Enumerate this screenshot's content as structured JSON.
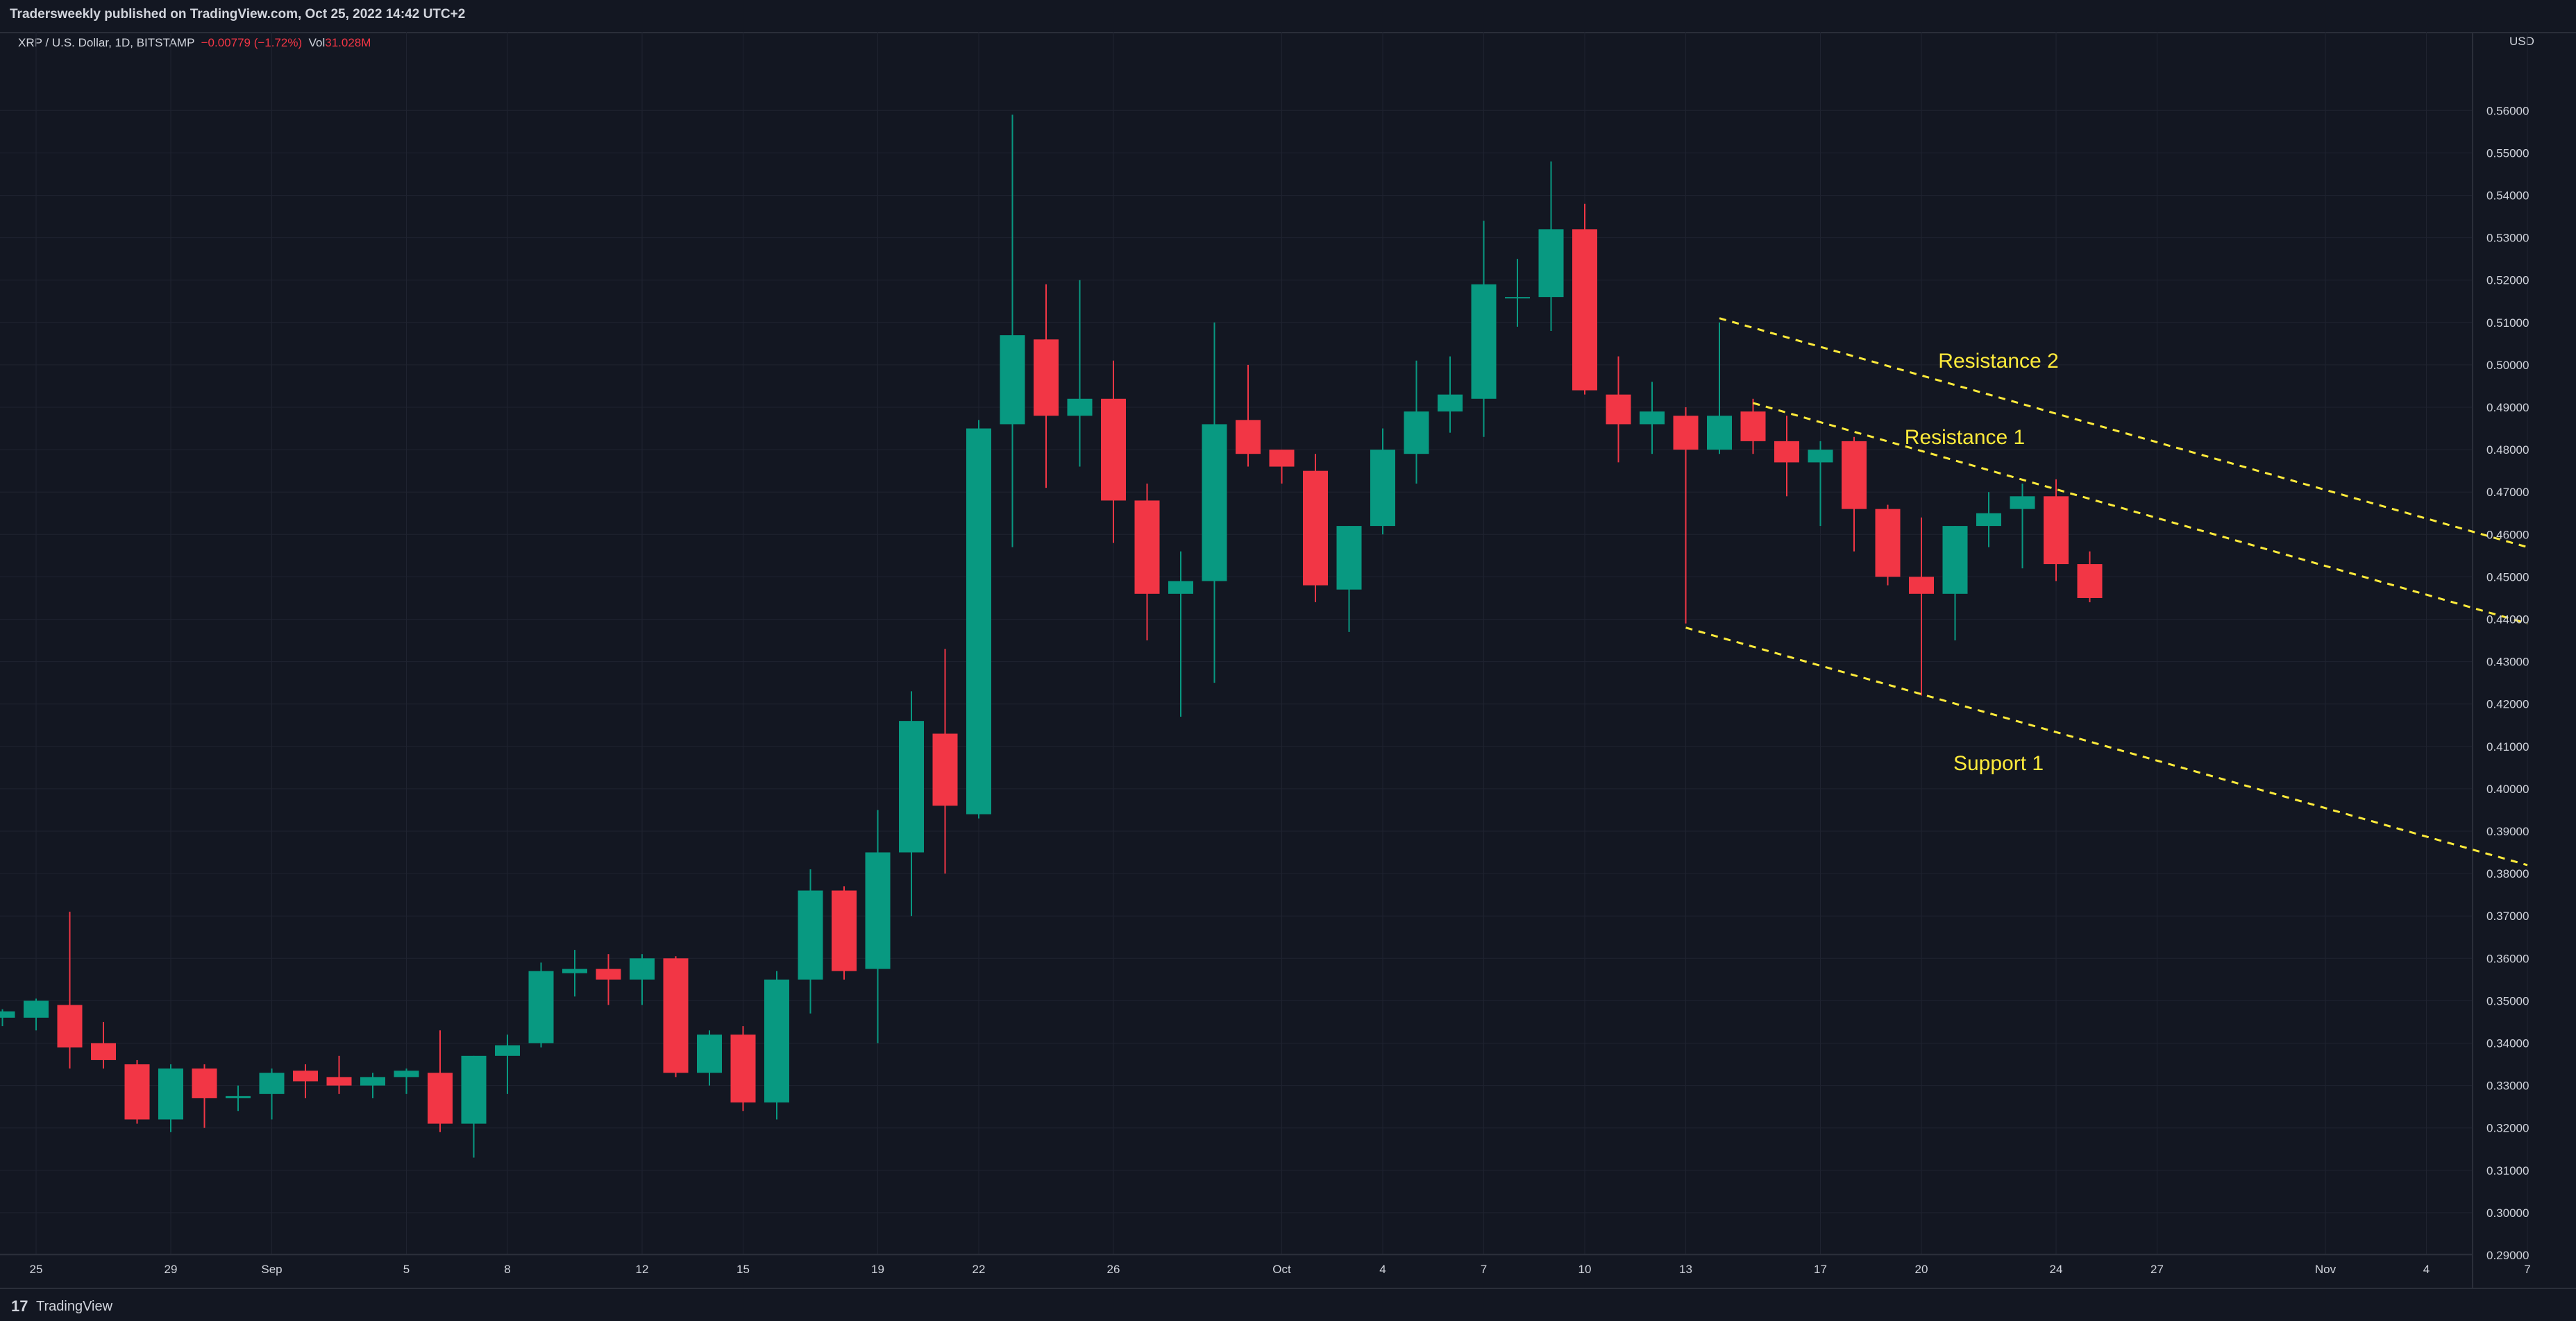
{
  "header": {
    "publisher_line": "Tradersweekly published on TradingView.com, Oct 25, 2022 14:42 UTC+2"
  },
  "legend": {
    "symbol": "XRP / U.S. Dollar, 1D, BITSTAMP",
    "change": "−0.00779 (−1.72%)",
    "vol_label": "Vol",
    "vol_value": "31.028M"
  },
  "footer": {
    "brand": "TradingView",
    "logo_text": "17"
  },
  "colors": {
    "up": "#089981",
    "down": "#f23645",
    "background": "#131722",
    "grid": "#1f2330",
    "text": "#d1d4dc",
    "annotation": "#ffeb3b"
  },
  "chart_data": {
    "type": "candlestick",
    "currency": "USD",
    "ylim": [
      0.285,
      0.565
    ],
    "price_ticks": [
      "0.56000",
      "0.55000",
      "0.54000",
      "0.53000",
      "0.52000",
      "0.51000",
      "0.50000",
      "0.49000",
      "0.48000",
      "0.47000",
      "0.46000",
      "0.45000",
      "0.44000",
      "0.43000",
      "0.42000",
      "0.41000",
      "0.40000",
      "0.39000",
      "0.38000",
      "0.37000",
      "0.36000",
      "0.35000",
      "0.34000",
      "0.33000",
      "0.32000",
      "0.31000",
      "0.30000",
      "0.29000"
    ],
    "date_ticks": [
      {
        "date": "2022-08-25",
        "label": "25"
      },
      {
        "date": "2022-08-29",
        "label": "29"
      },
      {
        "date": "2022-09-01",
        "label": "Sep"
      },
      {
        "date": "2022-09-05",
        "label": "5"
      },
      {
        "date": "2022-09-08",
        "label": "8"
      },
      {
        "date": "2022-09-12",
        "label": "12"
      },
      {
        "date": "2022-09-15",
        "label": "15"
      },
      {
        "date": "2022-09-19",
        "label": "19"
      },
      {
        "date": "2022-09-22",
        "label": "22"
      },
      {
        "date": "2022-09-26",
        "label": "26"
      },
      {
        "date": "2022-10-01",
        "label": "Oct"
      },
      {
        "date": "2022-10-04",
        "label": "4"
      },
      {
        "date": "2022-10-07",
        "label": "7"
      },
      {
        "date": "2022-10-10",
        "label": "10"
      },
      {
        "date": "2022-10-13",
        "label": "13"
      },
      {
        "date": "2022-10-17",
        "label": "17"
      },
      {
        "date": "2022-10-20",
        "label": "20"
      },
      {
        "date": "2022-10-24",
        "label": "24"
      },
      {
        "date": "2022-10-27",
        "label": "27"
      },
      {
        "date": "2022-11-01",
        "label": "Nov"
      },
      {
        "date": "2022-11-04",
        "label": "4"
      },
      {
        "date": "2022-11-07",
        "label": "7"
      }
    ],
    "candles": [
      {
        "date": "2022-08-24",
        "o": 0.346,
        "h": 0.348,
        "l": 0.344,
        "c": 0.3475
      },
      {
        "date": "2022-08-25",
        "o": 0.346,
        "h": 0.3505,
        "l": 0.343,
        "c": 0.35
      },
      {
        "date": "2022-08-26",
        "o": 0.349,
        "h": 0.371,
        "l": 0.334,
        "c": 0.339
      },
      {
        "date": "2022-08-27",
        "o": 0.34,
        "h": 0.345,
        "l": 0.334,
        "c": 0.336
      },
      {
        "date": "2022-08-28",
        "o": 0.335,
        "h": 0.336,
        "l": 0.321,
        "c": 0.322
      },
      {
        "date": "2022-08-29",
        "o": 0.322,
        "h": 0.335,
        "l": 0.319,
        "c": 0.334
      },
      {
        "date": "2022-08-30",
        "o": 0.334,
        "h": 0.335,
        "l": 0.32,
        "c": 0.327
      },
      {
        "date": "2022-08-31",
        "o": 0.327,
        "h": 0.33,
        "l": 0.324,
        "c": 0.3275
      },
      {
        "date": "2022-09-01",
        "o": 0.328,
        "h": 0.334,
        "l": 0.322,
        "c": 0.333
      },
      {
        "date": "2022-09-02",
        "o": 0.3335,
        "h": 0.335,
        "l": 0.327,
        "c": 0.331
      },
      {
        "date": "2022-09-03",
        "o": 0.332,
        "h": 0.337,
        "l": 0.328,
        "c": 0.33
      },
      {
        "date": "2022-09-04",
        "o": 0.33,
        "h": 0.333,
        "l": 0.327,
        "c": 0.332
      },
      {
        "date": "2022-09-05",
        "o": 0.332,
        "h": 0.334,
        "l": 0.328,
        "c": 0.3335
      },
      {
        "date": "2022-09-06",
        "o": 0.333,
        "h": 0.343,
        "l": 0.319,
        "c": 0.321
      },
      {
        "date": "2022-09-07",
        "o": 0.321,
        "h": 0.337,
        "l": 0.313,
        "c": 0.337
      },
      {
        "date": "2022-09-08",
        "o": 0.337,
        "h": 0.342,
        "l": 0.328,
        "c": 0.3395
      },
      {
        "date": "2022-09-09",
        "o": 0.34,
        "h": 0.359,
        "l": 0.339,
        "c": 0.357
      },
      {
        "date": "2022-09-10",
        "o": 0.3565,
        "h": 0.362,
        "l": 0.351,
        "c": 0.3575
      },
      {
        "date": "2022-09-11",
        "o": 0.3575,
        "h": 0.361,
        "l": 0.349,
        "c": 0.355
      },
      {
        "date": "2022-09-12",
        "o": 0.355,
        "h": 0.361,
        "l": 0.349,
        "c": 0.36
      },
      {
        "date": "2022-09-13",
        "o": 0.36,
        "h": 0.3605,
        "l": 0.332,
        "c": 0.333
      },
      {
        "date": "2022-09-14",
        "o": 0.333,
        "h": 0.343,
        "l": 0.33,
        "c": 0.342
      },
      {
        "date": "2022-09-15",
        "o": 0.342,
        "h": 0.344,
        "l": 0.324,
        "c": 0.326
      },
      {
        "date": "2022-09-16",
        "o": 0.326,
        "h": 0.357,
        "l": 0.322,
        "c": 0.355
      },
      {
        "date": "2022-09-17",
        "o": 0.355,
        "h": 0.381,
        "l": 0.347,
        "c": 0.376
      },
      {
        "date": "2022-09-18",
        "o": 0.376,
        "h": 0.377,
        "l": 0.355,
        "c": 0.357
      },
      {
        "date": "2022-09-19",
        "o": 0.3575,
        "h": 0.395,
        "l": 0.34,
        "c": 0.385
      },
      {
        "date": "2022-09-20",
        "o": 0.385,
        "h": 0.423,
        "l": 0.37,
        "c": 0.416
      },
      {
        "date": "2022-09-21",
        "o": 0.413,
        "h": 0.433,
        "l": 0.38,
        "c": 0.396
      },
      {
        "date": "2022-09-22",
        "o": 0.394,
        "h": 0.487,
        "l": 0.393,
        "c": 0.485
      },
      {
        "date": "2022-09-23",
        "o": 0.486,
        "h": 0.559,
        "l": 0.457,
        "c": 0.507
      },
      {
        "date": "2022-09-24",
        "o": 0.506,
        "h": 0.519,
        "l": 0.471,
        "c": 0.488
      },
      {
        "date": "2022-09-25",
        "o": 0.488,
        "h": 0.52,
        "l": 0.476,
        "c": 0.492
      },
      {
        "date": "2022-09-26",
        "o": 0.492,
        "h": 0.501,
        "l": 0.458,
        "c": 0.468
      },
      {
        "date": "2022-09-27",
        "o": 0.468,
        "h": 0.472,
        "l": 0.435,
        "c": 0.446
      },
      {
        "date": "2022-09-28",
        "o": 0.446,
        "h": 0.456,
        "l": 0.417,
        "c": 0.449
      },
      {
        "date": "2022-09-29",
        "o": 0.449,
        "h": 0.51,
        "l": 0.425,
        "c": 0.486
      },
      {
        "date": "2022-09-30",
        "o": 0.487,
        "h": 0.5,
        "l": 0.476,
        "c": 0.479
      },
      {
        "date": "2022-10-01",
        "o": 0.48,
        "h": 0.48,
        "l": 0.472,
        "c": 0.476
      },
      {
        "date": "2022-10-02",
        "o": 0.475,
        "h": 0.479,
        "l": 0.444,
        "c": 0.448
      },
      {
        "date": "2022-10-03",
        "o": 0.447,
        "h": 0.462,
        "l": 0.437,
        "c": 0.462
      },
      {
        "date": "2022-10-04",
        "o": 0.462,
        "h": 0.485,
        "l": 0.46,
        "c": 0.48
      },
      {
        "date": "2022-10-05",
        "o": 0.479,
        "h": 0.501,
        "l": 0.472,
        "c": 0.489
      },
      {
        "date": "2022-10-06",
        "o": 0.489,
        "h": 0.502,
        "l": 0.484,
        "c": 0.493
      },
      {
        "date": "2022-10-07",
        "o": 0.492,
        "h": 0.534,
        "l": 0.483,
        "c": 0.519
      },
      {
        "date": "2022-10-08",
        "o": 0.516,
        "h": 0.525,
        "l": 0.509,
        "c": 0.516
      },
      {
        "date": "2022-10-09",
        "o": 0.516,
        "h": 0.548,
        "l": 0.508,
        "c": 0.532
      },
      {
        "date": "2022-10-10",
        "o": 0.532,
        "h": 0.538,
        "l": 0.493,
        "c": 0.494
      },
      {
        "date": "2022-10-11",
        "o": 0.493,
        "h": 0.502,
        "l": 0.477,
        "c": 0.486
      },
      {
        "date": "2022-10-12",
        "o": 0.486,
        "h": 0.496,
        "l": 0.479,
        "c": 0.489
      },
      {
        "date": "2022-10-13",
        "o": 0.488,
        "h": 0.49,
        "l": 0.439,
        "c": 0.48
      },
      {
        "date": "2022-10-14",
        "o": 0.48,
        "h": 0.51,
        "l": 0.479,
        "c": 0.488
      },
      {
        "date": "2022-10-15",
        "o": 0.489,
        "h": 0.492,
        "l": 0.479,
        "c": 0.482
      },
      {
        "date": "2022-10-16",
        "o": 0.482,
        "h": 0.488,
        "l": 0.469,
        "c": 0.477
      },
      {
        "date": "2022-10-17",
        "o": 0.477,
        "h": 0.482,
        "l": 0.462,
        "c": 0.48
      },
      {
        "date": "2022-10-18",
        "o": 0.482,
        "h": 0.483,
        "l": 0.456,
        "c": 0.466
      },
      {
        "date": "2022-10-19",
        "o": 0.466,
        "h": 0.467,
        "l": 0.448,
        "c": 0.45
      },
      {
        "date": "2022-10-20",
        "o": 0.45,
        "h": 0.464,
        "l": 0.422,
        "c": 0.446
      },
      {
        "date": "2022-10-21",
        "o": 0.446,
        "h": 0.462,
        "l": 0.435,
        "c": 0.462
      },
      {
        "date": "2022-10-22",
        "o": 0.462,
        "h": 0.47,
        "l": 0.457,
        "c": 0.465
      },
      {
        "date": "2022-10-23",
        "o": 0.466,
        "h": 0.472,
        "l": 0.452,
        "c": 0.469
      },
      {
        "date": "2022-10-24",
        "o": 0.469,
        "h": 0.473,
        "l": 0.449,
        "c": 0.453
      },
      {
        "date": "2022-10-25",
        "o": 0.453,
        "h": 0.456,
        "l": 0.444,
        "c": 0.445
      }
    ],
    "trendlines": [
      {
        "name": "Resistance 2",
        "start": {
          "date": "2022-10-14",
          "price": 0.511
        },
        "end": {
          "date": "2022-11-07",
          "price": 0.457
        }
      },
      {
        "name": "Resistance 1",
        "start": {
          "date": "2022-10-15",
          "price": 0.491
        },
        "end": {
          "date": "2022-11-07",
          "price": 0.439
        }
      },
      {
        "name": "Support 1",
        "start": {
          "date": "2022-10-13",
          "price": 0.438
        },
        "end": {
          "date": "2022-11-07",
          "price": 0.382
        }
      }
    ],
    "annotations": [
      {
        "text": "Resistance 2",
        "date": "2022-10-22",
        "price": 0.501
      },
      {
        "text": "Resistance 1",
        "date": "2022-10-21",
        "price": 0.483
      },
      {
        "text": "Support 1",
        "date": "2022-10-22",
        "price": 0.406
      }
    ]
  }
}
